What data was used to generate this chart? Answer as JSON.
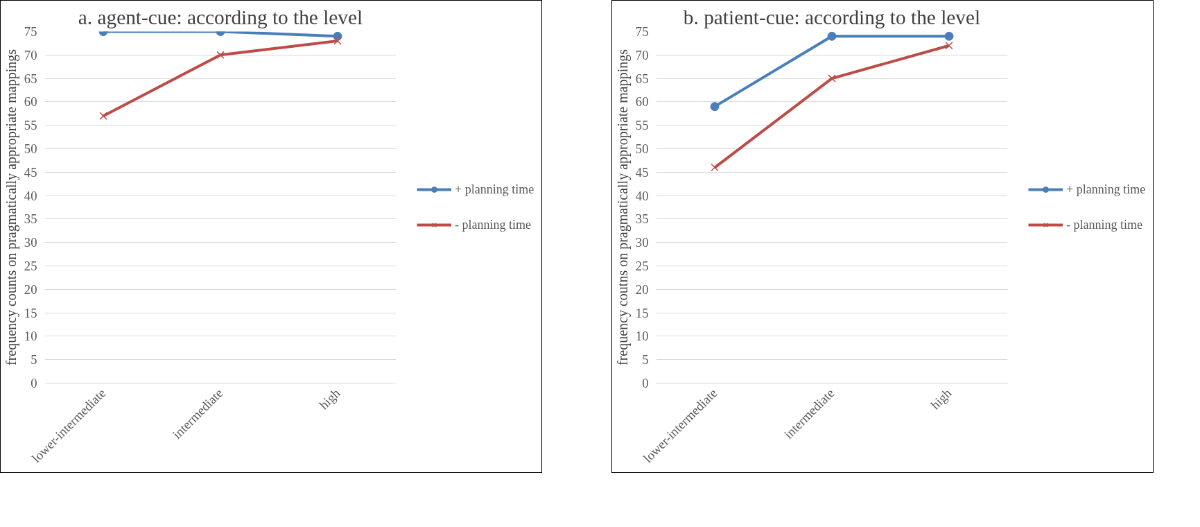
{
  "chart_data": [
    {
      "type": "line",
      "title": "a. agent-cue: according to the level",
      "ylabel": "frequency counts on pragmatically appropriate mappings",
      "categories": [
        "lower-intermediate",
        "intermediate",
        "high"
      ],
      "ylim": [
        0,
        75
      ],
      "yticks": [
        0,
        5,
        10,
        15,
        20,
        25,
        30,
        35,
        40,
        45,
        50,
        55,
        60,
        65,
        70,
        75
      ],
      "grid": "y",
      "legend": "right",
      "series": [
        {
          "name": "+ planning time",
          "color": "#4a7ebb",
          "marker": "circle",
          "values": [
            75,
            75,
            74
          ]
        },
        {
          "name": "- planning time",
          "color": "#be4b48",
          "marker": "cross",
          "values": [
            57,
            70,
            73
          ]
        }
      ]
    },
    {
      "type": "line",
      "title": "b. patient-cue: according to the level",
      "ylabel": "frequency coutns on pragmatically appropriate mappings",
      "categories": [
        "lower-intermediate",
        "intermediate",
        "high"
      ],
      "ylim": [
        0,
        75
      ],
      "yticks": [
        0,
        5,
        10,
        15,
        20,
        25,
        30,
        35,
        40,
        45,
        50,
        55,
        60,
        65,
        70,
        75
      ],
      "grid": "y",
      "legend": "right",
      "series": [
        {
          "name": "+ planning time",
          "color": "#4a7ebb",
          "marker": "circle",
          "values": [
            59,
            74,
            74
          ]
        },
        {
          "name": "- planning time",
          "color": "#be4b48",
          "marker": "cross",
          "values": [
            46,
            65,
            72
          ]
        }
      ]
    }
  ]
}
